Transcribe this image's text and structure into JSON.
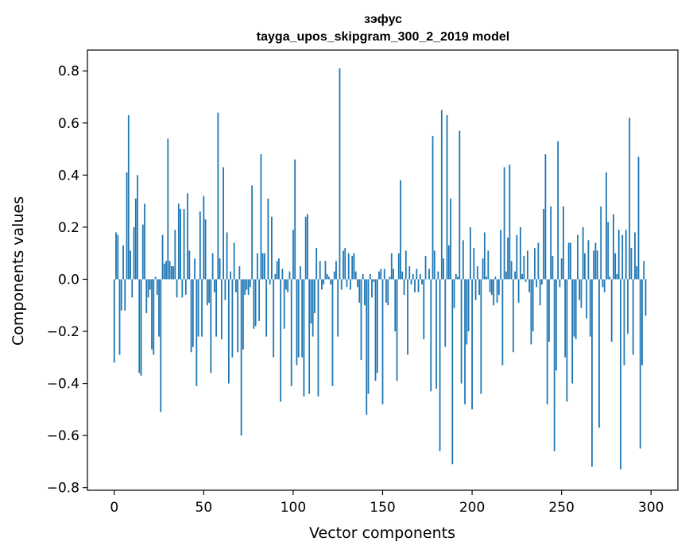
{
  "chart_data": {
    "type": "bar",
    "title": "зэфус",
    "subtitle": "tayga_upos_skipgram_300_2_2019 model",
    "xlabel": "Vector components",
    "ylabel": "Components values",
    "xlim": [
      -15,
      315
    ],
    "ylim": [
      -0.81,
      0.88
    ],
    "xticks": [
      0,
      50,
      100,
      150,
      200,
      250,
      300
    ],
    "yticks": [
      -0.8,
      -0.6,
      -0.4,
      -0.2,
      0.0,
      0.2,
      0.4,
      0.6,
      0.8
    ],
    "ytick_labels": [
      "−0.8",
      "−0.6",
      "−0.4",
      "−0.2",
      "0.0",
      "0.2",
      "0.4",
      "0.6",
      "0.8"
    ],
    "xtick_labels": [
      "0",
      "50",
      "100",
      "150",
      "200",
      "250",
      "300"
    ],
    "bar_color": "#1f77b4",
    "grid": false,
    "values": [
      -0.32,
      0.18,
      0.17,
      -0.29,
      -0.12,
      0.13,
      -0.12,
      0.41,
      0.63,
      0.11,
      -0.07,
      0.2,
      0.31,
      0.4,
      -0.36,
      -0.37,
      0.21,
      0.29,
      -0.13,
      -0.07,
      -0.04,
      -0.27,
      -0.29,
      0.01,
      -0.06,
      -0.22,
      -0.51,
      0.17,
      0.06,
      0.07,
      0.54,
      0.07,
      0.05,
      0.05,
      0.19,
      -0.07,
      0.29,
      0.27,
      -0.07,
      0.27,
      -0.06,
      0.33,
      0.11,
      -0.28,
      -0.26,
      0.08,
      -0.41,
      -0.22,
      0.26,
      -0.22,
      0.32,
      0.23,
      -0.1,
      -0.09,
      -0.36,
      0.1,
      -0.05,
      -0.22,
      0.64,
      0.08,
      -0.23,
      0.43,
      -0.08,
      0.18,
      -0.4,
      0.03,
      -0.3,
      0.14,
      -0.05,
      -0.28,
      0.05,
      -0.6,
      -0.27,
      -0.06,
      -0.04,
      -0.06,
      -0.03,
      0.36,
      -0.19,
      -0.18,
      0.1,
      -0.16,
      0.48,
      0.1,
      0.1,
      -0.22,
      0.31,
      -0.02,
      0.24,
      -0.3,
      0.02,
      0.07,
      0.08,
      -0.47,
      0.04,
      -0.19,
      -0.04,
      -0.05,
      0.03,
      -0.41,
      0.19,
      0.46,
      -0.33,
      -0.3,
      0.05,
      -0.3,
      -0.45,
      0.24,
      0.25,
      -0.44,
      -0.17,
      -0.22,
      -0.13,
      0.12,
      -0.45,
      0.07,
      -0.04,
      -0.02,
      0.07,
      0.02,
      0.01,
      -0.02,
      -0.41,
      0.03,
      0.07,
      -0.22,
      0.81,
      -0.04,
      0.11,
      0.12,
      -0.03,
      0.1,
      -0.04,
      0.09,
      0.1,
      0.03,
      -0.03,
      -0.09,
      -0.31,
      0.02,
      -0.1,
      -0.52,
      -0.44,
      0.02,
      -0.07,
      -0.01,
      -0.39,
      -0.36,
      0.03,
      0.04,
      -0.48,
      0.04,
      -0.09,
      -0.1,
      0.01,
      0.1,
      0.04,
      -0.2,
      -0.39,
      0.1,
      0.38,
      0.03,
      -0.06,
      0.11,
      -0.29,
      0.05,
      -0.02,
      0.02,
      -0.05,
      0.04,
      -0.05,
      0.02,
      -0.02,
      -0.23,
      0.09,
      0.0,
      0.04,
      -0.43,
      0.55,
      0.11,
      -0.42,
      0.03,
      -0.66,
      0.65,
      0.08,
      -0.26,
      0.63,
      0.13,
      0.31,
      -0.71,
      -0.11,
      0.02,
      0.01,
      0.57,
      -0.4,
      0.15,
      -0.48,
      -0.25,
      -0.2,
      0.2,
      -0.5,
      0.12,
      -0.08,
      0.05,
      -0.06,
      -0.44,
      0.08,
      0.18,
      0.01,
      0.11,
      -0.05,
      -0.06,
      -0.1,
      0.01,
      -0.09,
      -0.06,
      0.19,
      -0.33,
      0.43,
      0.03,
      0.16,
      0.44,
      0.07,
      -0.28,
      0.03,
      0.17,
      -0.09,
      0.2,
      0.02,
      0.09,
      -0.01,
      0.11,
      -0.05,
      -0.25,
      -0.2,
      0.12,
      -0.03,
      0.14,
      -0.1,
      -0.02,
      0.27,
      0.48,
      -0.48,
      -0.24,
      0.28,
      0.09,
      -0.66,
      -0.35,
      0.53,
      -0.03,
      0.08,
      0.28,
      -0.3,
      -0.47,
      0.14,
      0.14,
      -0.4,
      -0.22,
      -0.23,
      0.17,
      -0.08,
      -0.11,
      0.2,
      0.1,
      -0.15,
      0.15,
      -0.22,
      -0.72,
      0.11,
      0.14,
      0.11,
      -0.57,
      0.28,
      -0.03,
      -0.05,
      0.41,
      0.22,
      0.01,
      -0.24,
      0.25,
      0.1,
      0.02,
      0.19,
      -0.73,
      0.17,
      -0.33,
      0.19,
      -0.21,
      0.62,
      0.12,
      -0.29,
      0.18,
      0.05,
      0.47,
      -0.65,
      -0.33,
      0.07,
      -0.14
    ]
  }
}
